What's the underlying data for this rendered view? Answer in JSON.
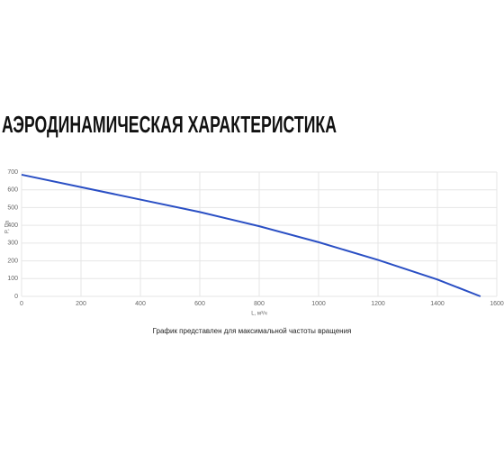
{
  "chart_data": {
    "type": "line",
    "title": "АЭРОДИНАМИЧЕСКАЯ ХАРАКТЕРИСТИКА",
    "x_label": "L, м³/ч",
    "y_label": "P, Па",
    "caption": "График представлен для максимальной частоты вращения",
    "x": [
      0,
      200,
      400,
      600,
      800,
      1000,
      1200,
      1400,
      1545
    ],
    "series": [
      {
        "name": "P",
        "color": "#2a4fc4",
        "values": [
          685,
          615,
          545,
          475,
          395,
          305,
          205,
          95,
          0
        ]
      }
    ],
    "xlim": [
      0,
      1600
    ],
    "xticks": [
      0,
      200,
      400,
      600,
      800,
      1000,
      1200,
      1400,
      1600
    ],
    "ylim": [
      0,
      700
    ],
    "yticks": [
      0,
      100,
      200,
      300,
      400,
      500,
      600,
      700
    ],
    "grid": true
  }
}
